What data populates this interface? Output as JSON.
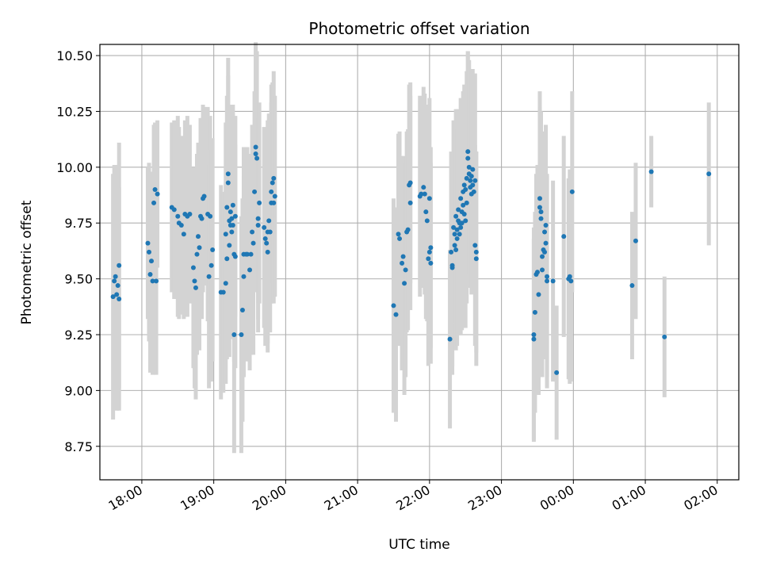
{
  "chart_data": {
    "type": "scatter",
    "title": "Photometric offset variation",
    "xlabel": "UTC time",
    "ylabel": "Photometric offset",
    "grid": true,
    "x_axis": {
      "kind": "time",
      "range": [
        "17:25",
        "02:18"
      ],
      "ticks": [
        "18:00",
        "19:00",
        "20:00",
        "21:00",
        "22:00",
        "23:00",
        "00:00",
        "01:00",
        "02:00"
      ]
    },
    "y_axis": {
      "range": [
        8.6,
        10.55
      ],
      "ticks": [
        "8.75",
        "9.00",
        "9.25",
        "9.50",
        "9.75",
        "10.00",
        "10.25",
        "10.50"
      ]
    },
    "colors": {
      "points": "#1f77b4",
      "errorbars": "#d3d3d3",
      "grid": "#b0b0b0"
    },
    "series": [
      {
        "points": [
          [
            "17:36",
            9.42,
            0.55
          ],
          [
            "17:37",
            9.49,
            0.52
          ],
          [
            "17:38",
            9.51,
            0.5
          ],
          [
            "17:39",
            9.43,
            0.52
          ],
          [
            "17:40",
            9.47,
            0.48
          ],
          [
            "17:41",
            9.56,
            0.55
          ],
          [
            "17:41",
            9.41,
            0.5
          ],
          [
            "18:05",
            9.66,
            0.34
          ],
          [
            "18:06",
            9.62,
            0.4
          ],
          [
            "18:07",
            9.52,
            0.44
          ],
          [
            "18:08",
            9.58,
            0.4
          ],
          [
            "18:09",
            9.49,
            0.42
          ],
          [
            "18:10",
            9.84,
            0.35
          ],
          [
            "18:11",
            9.9,
            0.3
          ],
          [
            "18:12",
            9.49,
            0.42
          ],
          [
            "18:13",
            9.88,
            0.33
          ],
          [
            "18:25",
            9.82,
            0.38
          ],
          [
            "18:27",
            9.81,
            0.4
          ],
          [
            "18:30",
            9.78,
            0.45
          ],
          [
            "18:31",
            9.75,
            0.43
          ],
          [
            "18:33",
            9.74,
            0.4
          ],
          [
            "18:35",
            9.7,
            0.38
          ],
          [
            "18:36",
            9.79,
            0.42
          ],
          [
            "18:38",
            9.78,
            0.45
          ],
          [
            "18:40",
            9.79,
            0.4
          ],
          [
            "18:43",
            9.55,
            0.45
          ],
          [
            "18:44",
            9.49,
            0.48
          ],
          [
            "18:45",
            9.46,
            0.5
          ],
          [
            "18:46",
            9.61,
            0.45
          ],
          [
            "18:47",
            9.69,
            0.42
          ],
          [
            "18:48",
            9.64,
            0.46
          ],
          [
            "18:49",
            9.78,
            0.44
          ],
          [
            "18:50",
            9.77,
            0.45
          ],
          [
            "18:51",
            9.86,
            0.42
          ],
          [
            "18:52",
            9.87,
            0.4
          ],
          [
            "18:55",
            9.79,
            0.48
          ],
          [
            "18:56",
            9.51,
            0.5
          ],
          [
            "18:57",
            9.78,
            0.45
          ],
          [
            "18:58",
            9.56,
            0.52
          ],
          [
            "18:59",
            9.63,
            0.5
          ],
          [
            "19:06",
            9.44,
            0.48
          ],
          [
            "19:08",
            9.44,
            0.45
          ],
          [
            "19:10",
            9.7,
            0.5
          ],
          [
            "19:10",
            9.48,
            0.45
          ],
          [
            "19:11",
            9.82,
            0.5
          ],
          [
            "19:11",
            9.59,
            0.45
          ],
          [
            "19:12",
            9.97,
            0.52
          ],
          [
            "19:12",
            9.93,
            0.48
          ],
          [
            "19:13",
            9.76,
            0.46
          ],
          [
            "19:13",
            9.65,
            0.5
          ],
          [
            "19:14",
            9.8,
            0.48
          ],
          [
            "19:14",
            9.74,
            0.45
          ],
          [
            "19:15",
            9.77,
            0.5
          ],
          [
            "19:15",
            9.71,
            0.48
          ],
          [
            "19:16",
            9.83,
            0.45
          ],
          [
            "19:16",
            9.74,
            0.5
          ],
          [
            "19:17",
            9.61,
            0.48
          ],
          [
            "19:17",
            9.25,
            0.53
          ],
          [
            "19:18",
            9.78,
            0.45
          ],
          [
            "19:18",
            9.6,
            0.5
          ],
          [
            "19:23",
            9.25,
            0.53
          ],
          [
            "19:24",
            9.36,
            0.5
          ],
          [
            "19:25",
            9.61,
            0.48
          ],
          [
            "19:25",
            9.51,
            0.45
          ],
          [
            "19:27",
            9.61,
            0.45
          ],
          [
            "19:28",
            9.61,
            0.48
          ],
          [
            "19:30",
            9.54,
            0.45
          ],
          [
            "19:31",
            9.61,
            0.45
          ],
          [
            "19:32",
            9.71,
            0.48
          ],
          [
            "19:33",
            9.66,
            0.5
          ],
          [
            "19:34",
            9.89,
            0.45
          ],
          [
            "19:35",
            10.06,
            0.5
          ],
          [
            "19:35",
            10.09,
            0.45
          ],
          [
            "19:36",
            10.04,
            0.48
          ],
          [
            "19:37",
            9.77,
            0.45
          ],
          [
            "19:37",
            9.74,
            0.48
          ],
          [
            "19:38",
            9.84,
            0.45
          ],
          [
            "19:42",
            9.73,
            0.45
          ],
          [
            "19:43",
            9.68,
            0.48
          ],
          [
            "19:44",
            9.66,
            0.45
          ],
          [
            "19:45",
            9.71,
            0.5
          ],
          [
            "19:45",
            9.62,
            0.45
          ],
          [
            "19:46",
            9.76,
            0.48
          ],
          [
            "19:47",
            9.71,
            0.45
          ],
          [
            "19:48",
            9.89,
            0.48
          ],
          [
            "19:48",
            9.84,
            0.45
          ],
          [
            "19:49",
            9.93,
            0.45
          ],
          [
            "19:50",
            9.95,
            0.48
          ],
          [
            "19:50",
            9.84,
            0.45
          ],
          [
            "19:51",
            9.87,
            0.45
          ],
          [
            "21:30",
            9.38,
            0.48
          ],
          [
            "21:32",
            9.34,
            0.48
          ],
          [
            "21:34",
            9.7,
            0.45
          ],
          [
            "21:35",
            9.68,
            0.48
          ],
          [
            "21:37",
            9.57,
            0.48
          ],
          [
            "21:38",
            9.6,
            0.45
          ],
          [
            "21:39",
            9.48,
            0.5
          ],
          [
            "21:40",
            9.54,
            0.48
          ],
          [
            "21:41",
            9.71,
            0.45
          ],
          [
            "21:42",
            9.72,
            0.45
          ],
          [
            "21:43",
            9.92,
            0.45
          ],
          [
            "21:44",
            9.84,
            0.48
          ],
          [
            "21:44",
            9.93,
            0.45
          ],
          [
            "21:52",
            9.87,
            0.45
          ],
          [
            "21:53",
            9.88,
            0.42
          ],
          [
            "21:55",
            9.91,
            0.45
          ],
          [
            "21:56",
            9.88,
            0.45
          ],
          [
            "21:57",
            9.8,
            0.48
          ],
          [
            "21:58",
            9.76,
            0.45
          ],
          [
            "21:59",
            9.59,
            0.48
          ],
          [
            "22:00",
            9.62,
            0.45
          ],
          [
            "22:01",
            9.57,
            0.45
          ],
          [
            "22:00",
            9.86,
            0.45
          ],
          [
            "22:01",
            9.64,
            0.45
          ],
          [
            "22:17",
            9.23,
            0.4
          ],
          [
            "22:18",
            9.62,
            0.45
          ],
          [
            "22:19",
            9.56,
            0.45
          ],
          [
            "22:19",
            9.55,
            0.48
          ],
          [
            "22:20",
            9.73,
            0.48
          ],
          [
            "22:21",
            9.65,
            0.45
          ],
          [
            "22:21",
            9.7,
            0.48
          ],
          [
            "22:22",
            9.63,
            0.45
          ],
          [
            "22:22",
            9.78,
            0.48
          ],
          [
            "22:23",
            9.72,
            0.45
          ],
          [
            "22:23",
            9.68,
            0.48
          ],
          [
            "22:24",
            9.81,
            0.45
          ],
          [
            "22:24",
            9.76,
            0.48
          ],
          [
            "22:25",
            9.7,
            0.45
          ],
          [
            "22:25",
            9.75,
            0.48
          ],
          [
            "22:26",
            9.86,
            0.45
          ],
          [
            "22:26",
            9.73,
            0.48
          ],
          [
            "22:27",
            9.8,
            0.45
          ],
          [
            "22:27",
            9.75,
            0.48
          ],
          [
            "22:28",
            9.89,
            0.45
          ],
          [
            "22:28",
            9.83,
            0.48
          ],
          [
            "22:29",
            9.92,
            0.45
          ],
          [
            "22:29",
            9.79,
            0.48
          ],
          [
            "22:30",
            9.9,
            0.45
          ],
          [
            "22:30",
            9.76,
            0.48
          ],
          [
            "22:31",
            9.84,
            0.45
          ],
          [
            "22:31",
            9.95,
            0.48
          ],
          [
            "22:32",
            10.07,
            0.45
          ],
          [
            "22:32",
            10.04,
            0.48
          ],
          [
            "22:33",
            9.97,
            0.45
          ],
          [
            "22:33",
            10.0,
            0.48
          ],
          [
            "22:34",
            9.91,
            0.45
          ],
          [
            "22:34",
            9.94,
            0.48
          ],
          [
            "22:35",
            9.88,
            0.45
          ],
          [
            "22:35",
            9.96,
            0.48
          ],
          [
            "22:36",
            9.99,
            0.45
          ],
          [
            "22:36",
            9.92,
            0.48
          ],
          [
            "22:37",
            9.89,
            0.45
          ],
          [
            "22:38",
            9.65,
            0.45
          ],
          [
            "22:38",
            9.94,
            0.48
          ],
          [
            "22:39",
            9.62,
            0.45
          ],
          [
            "22:39",
            9.59,
            0.48
          ],
          [
            "23:27",
            9.23,
            0.45
          ],
          [
            "23:27",
            9.25,
            0.48
          ],
          [
            "23:28",
            9.35,
            0.45
          ],
          [
            "23:29",
            9.52,
            0.45
          ],
          [
            "23:30",
            9.53,
            0.48
          ],
          [
            "23:31",
            9.43,
            0.45
          ],
          [
            "23:32",
            9.82,
            0.45
          ],
          [
            "23:32",
            9.86,
            0.48
          ],
          [
            "23:33",
            9.8,
            0.45
          ],
          [
            "23:33",
            9.77,
            0.48
          ],
          [
            "23:34",
            9.6,
            0.45
          ],
          [
            "23:34",
            9.54,
            0.48
          ],
          [
            "23:35",
            9.63,
            0.45
          ],
          [
            "23:36",
            9.71,
            0.45
          ],
          [
            "23:36",
            9.62,
            0.48
          ],
          [
            "23:37",
            9.74,
            0.45
          ],
          [
            "23:37",
            9.66,
            0.48
          ],
          [
            "23:38",
            9.51,
            0.45
          ],
          [
            "23:38",
            9.49,
            0.48
          ],
          [
            "23:43",
            9.49,
            0.45
          ],
          [
            "23:46",
            9.08,
            0.3
          ],
          [
            "23:52",
            9.69,
            0.45
          ],
          [
            "23:56",
            9.5,
            0.45
          ],
          [
            "23:57",
            9.51,
            0.48
          ],
          [
            "23:58",
            9.49,
            0.45
          ],
          [
            "23:59",
            9.89,
            0.45
          ],
          [
            "00:49",
            9.47,
            0.33
          ],
          [
            "00:52",
            9.67,
            0.35
          ],
          [
            "01:05",
            9.98,
            0.16
          ],
          [
            "01:16",
            9.24,
            0.27
          ],
          [
            "01:53",
            9.97,
            0.32
          ]
        ]
      }
    ]
  }
}
